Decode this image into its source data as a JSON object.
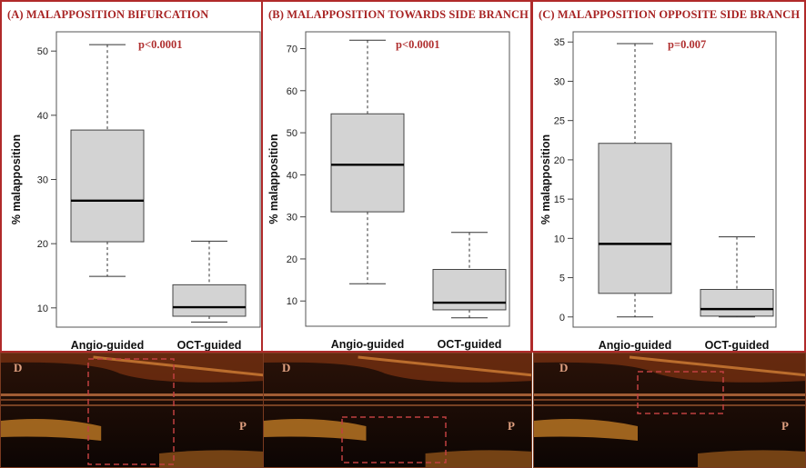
{
  "chart_data": [
    {
      "type": "boxplot",
      "panel_title": "(A) MALAPPOSITION BIFURCATION",
      "ylabel": "% malapposition",
      "ylim": [
        7,
        53
      ],
      "yticks": [
        10,
        20,
        30,
        40,
        50
      ],
      "categories": [
        "Angio-guided",
        "OCT-guided"
      ],
      "boxes": [
        {
          "min": 14.9,
          "q1": 20.3,
          "median": 26.7,
          "q3": 37.7,
          "max": 51
        },
        {
          "min": 7.8,
          "q1": 8.7,
          "median": 10.1,
          "q3": 13.6,
          "max": 20.4
        }
      ],
      "annotation": "p<0.0001",
      "strip_labels": {
        "left": "D",
        "right": "P"
      }
    },
    {
      "type": "boxplot",
      "panel_title": "(B) MALAPPOSITION TOWARDS SIDE BRANCH",
      "ylabel": "% malapposition",
      "ylim": [
        4,
        74
      ],
      "yticks": [
        10,
        20,
        30,
        40,
        50,
        60,
        70
      ],
      "categories": [
        "Angio-guided",
        "OCT-guided"
      ],
      "boxes": [
        {
          "min": 14.1,
          "q1": 31.2,
          "median": 42.4,
          "q3": 54.5,
          "max": 72
        },
        {
          "min": 6,
          "q1": 7.9,
          "median": 9.6,
          "q3": 17.5,
          "max": 26.3
        }
      ],
      "annotation": "p<0.0001",
      "strip_labels": {
        "left": "D",
        "right": "P"
      }
    },
    {
      "type": "boxplot",
      "panel_title": "(C) MALAPPOSITION OPPOSITE SIDE BRANCH",
      "ylabel": "% malapposition",
      "ylim": [
        -1.3,
        36.3
      ],
      "yticks": [
        0,
        5,
        10,
        15,
        20,
        25,
        30,
        35
      ],
      "categories": [
        "Angio-guided",
        "OCT-guided"
      ],
      "boxes": [
        {
          "min": 0,
          "q1": 3,
          "median": 9.3,
          "q3": 22.1,
          "max": 34.8
        },
        {
          "min": 0,
          "q1": 0.1,
          "median": 1,
          "q3": 3.5,
          "max": 10.2
        }
      ],
      "annotation": "p=0.007",
      "strip_labels": {
        "left": "D",
        "right": "P"
      }
    }
  ],
  "colors": {
    "border": "#b02a2a",
    "title": "#a82424",
    "box_fill": "#d3d3d3",
    "annotation": "#b03030"
  }
}
